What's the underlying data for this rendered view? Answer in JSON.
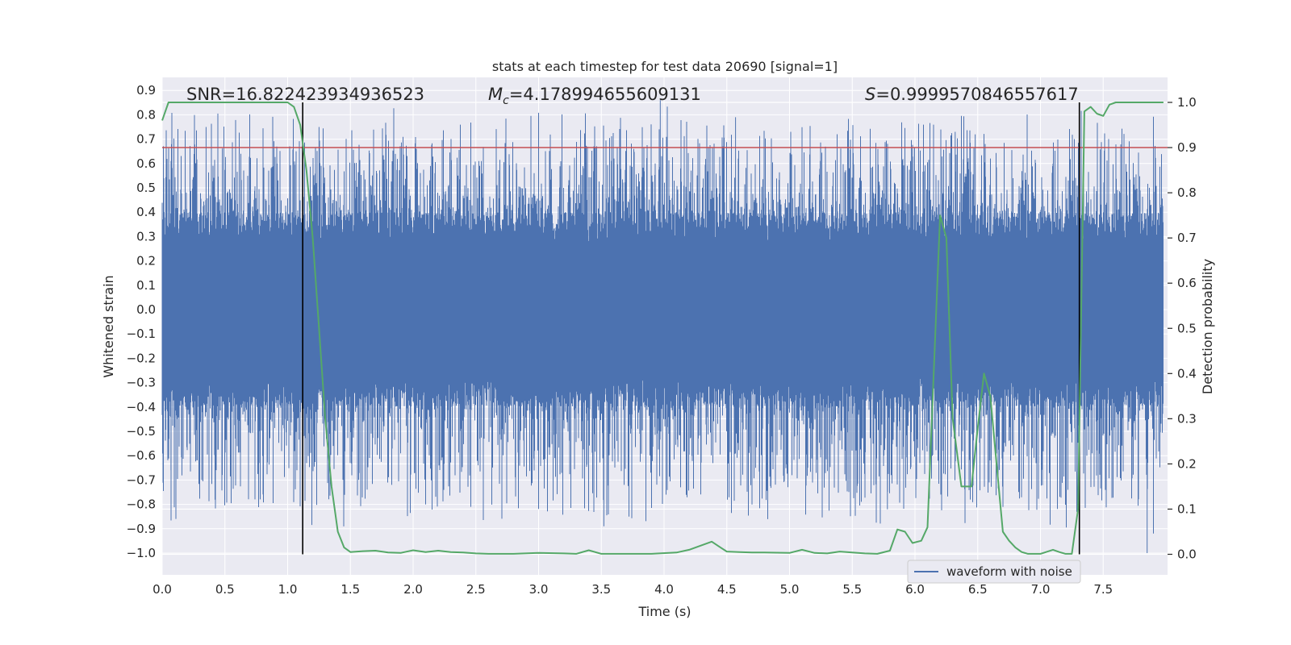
{
  "chart_data": {
    "type": "line",
    "title": "stats at each timestep for test data 20690 [signal=1]",
    "xlabel": "Time (s)",
    "ylabel": "Whitened strain",
    "y2label": "Detection probability",
    "xlim": [
      0.0,
      8.0
    ],
    "ylim": [
      -1.09,
      0.96
    ],
    "y2lim": [
      -0.05,
      1.05
    ],
    "x_ticks": [
      0.0,
      0.5,
      1.0,
      1.5,
      2.0,
      2.5,
      3.0,
      3.5,
      4.0,
      4.5,
      5.0,
      5.5,
      6.0,
      6.5,
      7.0,
      7.5
    ],
    "x_tick_labels": [
      "0.0",
      "0.5",
      "1.0",
      "1.5",
      "2.0",
      "2.5",
      "3.0",
      "3.5",
      "4.0",
      "4.5",
      "5.0",
      "5.5",
      "6.0",
      "6.5",
      "7.0",
      "7.5"
    ],
    "y_ticks": [
      0.9,
      0.8,
      0.7,
      0.6,
      0.5,
      0.4,
      0.3,
      0.2,
      0.1,
      0.0,
      -0.1,
      -0.2,
      -0.3,
      -0.4,
      -0.5,
      -0.6,
      -0.7,
      -0.8,
      -0.9,
      -1.0
    ],
    "y_tick_labels": [
      "0.9",
      "0.8",
      "0.7",
      "0.6",
      "0.5",
      "0.4",
      "0.3",
      "0.2",
      "0.1",
      "0.0",
      "−0.1",
      "−0.2",
      "−0.3",
      "−0.4",
      "−0.5",
      "−0.6",
      "−0.7",
      "−0.8",
      "−0.9",
      "−1.0"
    ],
    "y2_ticks": [
      1.0,
      0.9,
      0.8,
      0.7,
      0.6,
      0.5,
      0.4,
      0.3,
      0.2,
      0.1,
      0.0
    ],
    "y2_tick_labels": [
      "1.0",
      "0.9",
      "0.8",
      "0.7",
      "0.6",
      "0.5",
      "0.4",
      "0.3",
      "0.2",
      "0.1",
      "0.0"
    ],
    "grid": true,
    "legend": {
      "position": "lower right",
      "entries": [
        "waveform with noise"
      ]
    },
    "annotations": {
      "snr": "SNR=16.822423934936523",
      "mc_symbol": "M",
      "mc_sub": "c",
      "mc_value": "=4.178994655609131",
      "s_symbol": "S",
      "s_value": "=0.9999570846557617"
    },
    "threshold_line": {
      "y2": 0.9,
      "color": "#c44e52"
    },
    "vertical_lines": {
      "x": [
        1.12,
        7.31
      ],
      "color": "#000000"
    },
    "series": [
      {
        "name": "waveform with noise",
        "axis": "left",
        "color": "#4c72b0",
        "kind": "noise-strain",
        "x_range": [
          0.0,
          7.98
        ],
        "envelope_typical": 0.5,
        "spike_max": 0.86,
        "spike_min": -1.0
      },
      {
        "axis": "right",
        "color": "#55a868",
        "x": [
          0.0,
          0.05,
          0.1,
          0.2,
          0.3,
          0.4,
          0.5,
          0.6,
          0.7,
          0.8,
          0.9,
          1.0,
          1.05,
          1.1,
          1.15,
          1.2,
          1.25,
          1.3,
          1.35,
          1.4,
          1.45,
          1.5,
          1.6,
          1.7,
          1.8,
          1.9,
          2.0,
          2.1,
          2.2,
          2.3,
          2.4,
          2.5,
          2.6,
          2.8,
          3.0,
          3.2,
          3.3,
          3.4,
          3.5,
          3.7,
          3.9,
          4.1,
          4.2,
          4.3,
          4.38,
          4.45,
          4.5,
          4.6,
          4.7,
          4.8,
          5.0,
          5.1,
          5.2,
          5.3,
          5.4,
          5.5,
          5.6,
          5.7,
          5.8,
          5.86,
          5.92,
          5.98,
          6.05,
          6.1,
          6.2,
          6.25,
          6.3,
          6.37,
          6.45,
          6.5,
          6.55,
          6.6,
          6.65,
          6.7,
          6.75,
          6.8,
          6.85,
          6.9,
          7.0,
          7.1,
          7.15,
          7.2,
          7.25,
          7.3,
          7.35,
          7.4,
          7.45,
          7.5,
          7.55,
          7.6,
          7.7,
          7.8,
          7.9,
          7.98
        ],
        "values": [
          0.96,
          1.0,
          1.0,
          1.0,
          1.0,
          1.0,
          1.0,
          1.0,
          1.0,
          1.0,
          1.0,
          1.0,
          0.99,
          0.95,
          0.85,
          0.7,
          0.5,
          0.3,
          0.15,
          0.05,
          0.015,
          0.005,
          0.007,
          0.008,
          0.004,
          0.003,
          0.009,
          0.005,
          0.008,
          0.005,
          0.004,
          0.002,
          0.001,
          0.001,
          0.003,
          0.002,
          0.001,
          0.009,
          0.001,
          0.001,
          0.001,
          0.004,
          0.01,
          0.02,
          0.028,
          0.015,
          0.006,
          0.005,
          0.004,
          0.004,
          0.003,
          0.01,
          0.003,
          0.002,
          0.006,
          0.004,
          0.002,
          0.001,
          0.008,
          0.055,
          0.05,
          0.025,
          0.03,
          0.06,
          0.75,
          0.7,
          0.3,
          0.15,
          0.15,
          0.28,
          0.4,
          0.35,
          0.2,
          0.05,
          0.03,
          0.015,
          0.005,
          0.001,
          0.001,
          0.01,
          0.005,
          0.001,
          0.001,
          0.1,
          0.98,
          0.99,
          0.975,
          0.97,
          0.995,
          1.0,
          1.0,
          1.0,
          1.0,
          1.0
        ]
      }
    ]
  }
}
